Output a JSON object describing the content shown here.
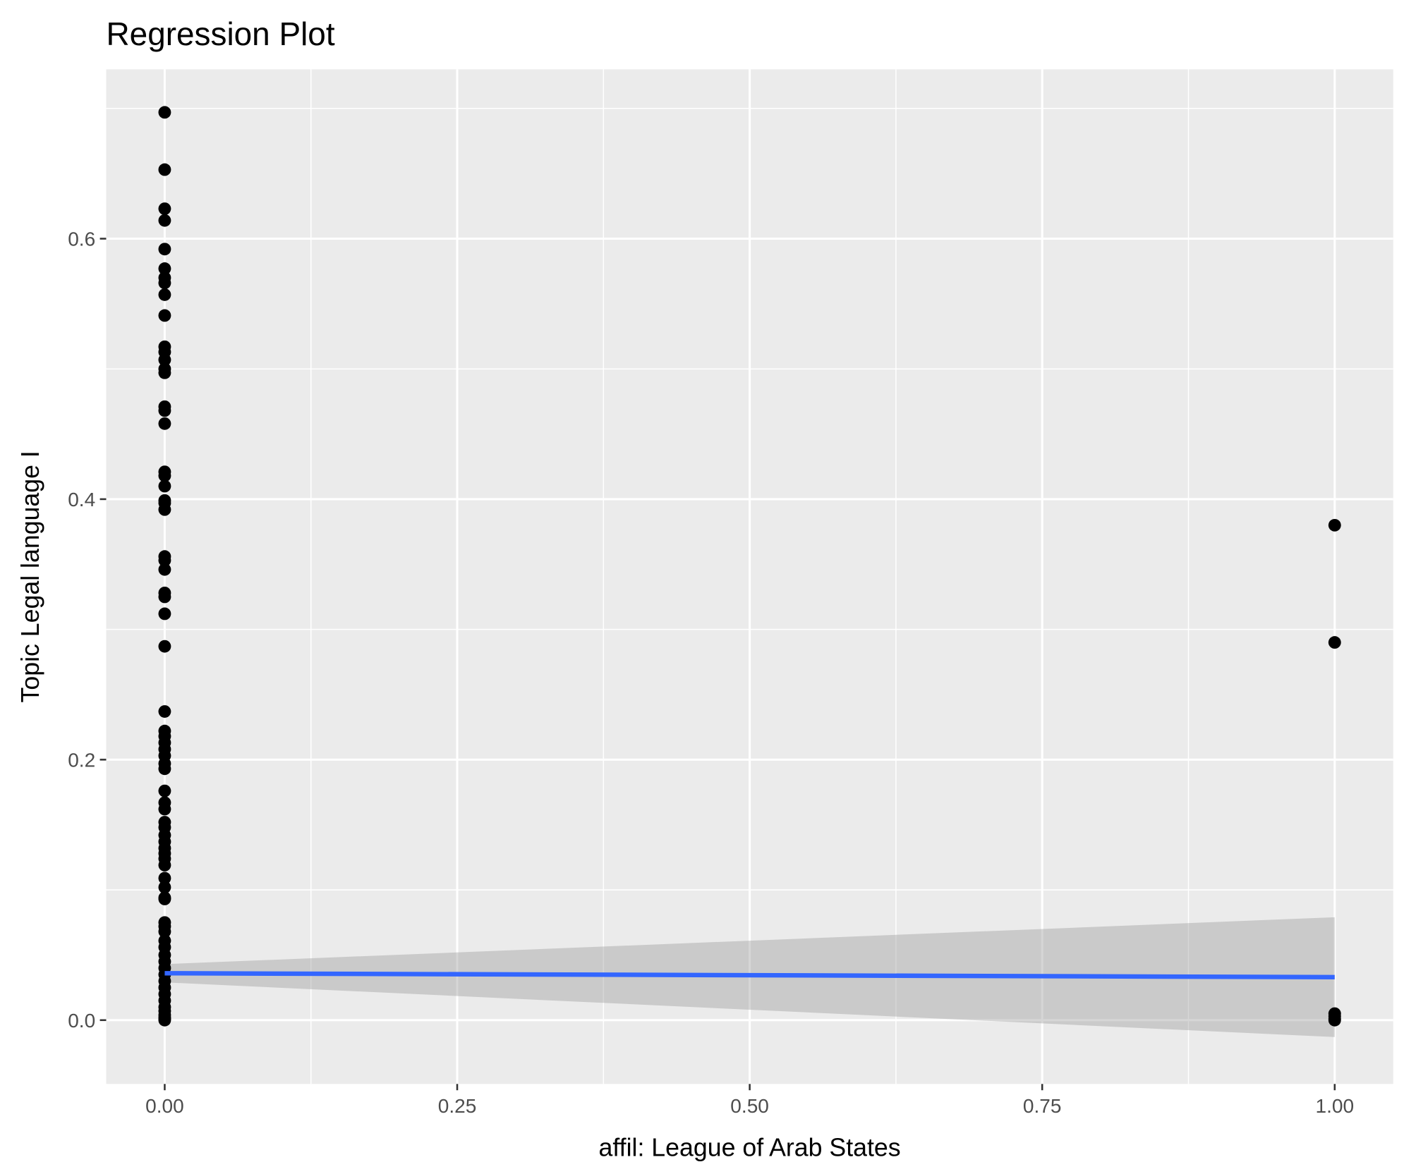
{
  "chart_data": {
    "type": "scatter",
    "title": "Regression Plot",
    "xlabel": "affil: League of Arab States",
    "ylabel": "Topic Legal language I",
    "xlim": [
      -0.05,
      1.05
    ],
    "ylim": [
      -0.049,
      0.73
    ],
    "xticks": [
      0,
      0.25,
      0.5,
      0.75,
      1
    ],
    "xtick_labels": [
      "0.00",
      "0.25",
      "0.50",
      "0.75",
      "1.00"
    ],
    "yticks": [
      0,
      0.2,
      0.4,
      0.6
    ],
    "ytick_labels": [
      "0.0",
      "0.2",
      "0.4",
      "0.6"
    ],
    "grid": true,
    "colors": {
      "panel": "#ebebeb",
      "grid": "#ffffff",
      "points": "#000000",
      "fit_line": "#3366ff",
      "ribbon": "#c8c8c8"
    },
    "points": [
      {
        "x": 0,
        "y": [
          0.697,
          0.653,
          0.623,
          0.614,
          0.592,
          0.577,
          0.57,
          0.566,
          0.557,
          0.541,
          0.517,
          0.513,
          0.507,
          0.5,
          0.497,
          0.471,
          0.468,
          0.458,
          0.421,
          0.418,
          0.41,
          0.399,
          0.397,
          0.392,
          0.356,
          0.353,
          0.346,
          0.328,
          0.325,
          0.312,
          0.287,
          0.237,
          0.222,
          0.218,
          0.213,
          0.208,
          0.203,
          0.197,
          0.193,
          0.176,
          0.167,
          0.162,
          0.152,
          0.148,
          0.142,
          0.137,
          0.132,
          0.128,
          0.124,
          0.119,
          0.109,
          0.102,
          0.094,
          0.093,
          0.075,
          0.072,
          0.068,
          0.061,
          0.056,
          0.05,
          0.045,
          0.04,
          0.035,
          0.03,
          0.025,
          0.02,
          0.015,
          0.01,
          0.007,
          0.004,
          0.002,
          0.001,
          0.0
        ]
      },
      {
        "x": 1,
        "y": [
          0.38,
          0.29,
          0.005,
          0.003,
          0.001,
          0.0
        ]
      }
    ],
    "fit": {
      "x": [
        0,
        1
      ],
      "y": [
        0.036,
        0.033
      ],
      "lower": [
        0.029,
        -0.013
      ],
      "upper": [
        0.043,
        0.079
      ]
    }
  }
}
